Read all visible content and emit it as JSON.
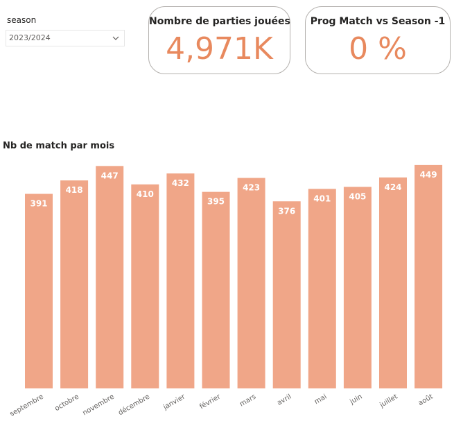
{
  "slicer": {
    "title": "season",
    "selected": "2023/2024",
    "icon": "chevron-down-icon"
  },
  "cards": [
    {
      "title": "Nombre de parties jouées",
      "value": "4,971K"
    },
    {
      "title": "Prog Match vs Season -1",
      "value": "0 %"
    }
  ],
  "colors": {
    "bar": "#f0a688",
    "kpi_value": "#e8895e",
    "card_border": "#b3b0ad"
  },
  "chart_data": {
    "type": "bar",
    "title": "Nb de match par mois",
    "xlabel": "",
    "ylabel": "",
    "categories": [
      "septembre",
      "octobre",
      "novembre",
      "décembre",
      "janvier",
      "février",
      "mars",
      "avril",
      "mai",
      "juin",
      "juillet",
      "août"
    ],
    "values": [
      391,
      418,
      447,
      410,
      432,
      395,
      423,
      376,
      401,
      405,
      424,
      449
    ],
    "ylim": [
      0,
      460
    ],
    "grid": false,
    "data_labels": true
  }
}
